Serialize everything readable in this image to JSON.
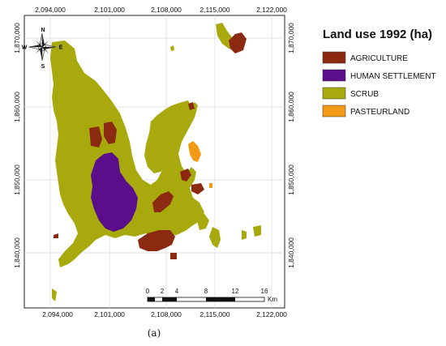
{
  "legend": {
    "title": "Land use 1992 (ha)",
    "items": [
      {
        "label": "AGRICULTURE",
        "color": "#8b2a10"
      },
      {
        "label": "HUMAN SETTLEMENT",
        "color": "#5b0e8a"
      },
      {
        "label": "SCRUB",
        "color": "#a8a90c"
      },
      {
        "label": "PASTEURLAND",
        "color": "#f29a16"
      }
    ]
  },
  "axes": {
    "x_ticks": [
      "2,094,000",
      "2,101,000",
      "2,108,000",
      "2,115,000",
      "2,122,000"
    ],
    "y_ticks": [
      "1,870,000",
      "1,860,000",
      "1,850,000",
      "1,840,000"
    ]
  },
  "north_arrow": {
    "n": "N",
    "s": "S",
    "e": "E",
    "w": "W"
  },
  "scale_bar": {
    "labels": [
      "0",
      "2",
      "4",
      "8",
      "12",
      "16"
    ],
    "unit": "Km"
  },
  "caption": "(a)"
}
